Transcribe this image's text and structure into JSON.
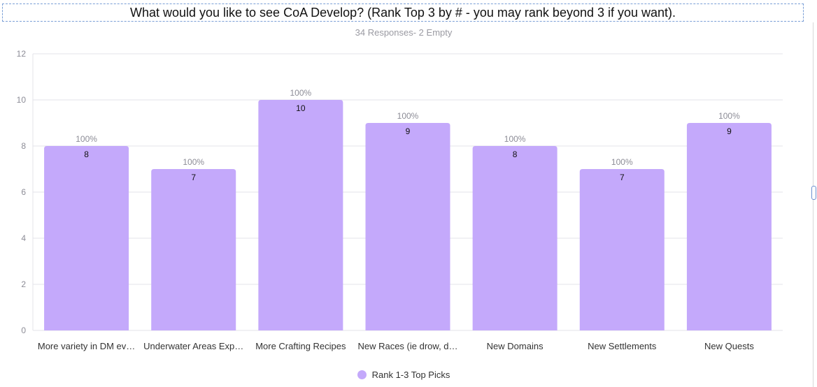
{
  "colors": {
    "bar": "#c4a9fb",
    "grid": "#e3e3e8",
    "axis_text": "#8c8c96",
    "pct_text": "#8c8c96",
    "value_text": "#111111"
  },
  "chart_data": {
    "type": "bar",
    "title": "What would you like to see CoA Develop? (Rank Top 3 by # - you may rank beyond 3 if you want).",
    "subtitle": "34 Responses- 2 Empty",
    "categories": [
      "More variety in DM ev…",
      "Underwater Areas Exp…",
      "More Crafting Recipes",
      "New Races (ie drow, d…",
      "New Domains",
      "New Settlements",
      "New Quests"
    ],
    "series": [
      {
        "name": "Rank 1-3 Top Picks",
        "values": [
          8,
          7,
          10,
          9,
          8,
          7,
          9
        ]
      }
    ],
    "percent_labels": [
      "100%",
      "100%",
      "100%",
      "100%",
      "100%",
      "100%",
      "100%"
    ],
    "ylim": [
      0,
      12
    ],
    "yticks": [
      0,
      2,
      4,
      6,
      8,
      10,
      12
    ],
    "ytick_labels": [
      "0",
      "2",
      "4",
      "6",
      "8",
      "10",
      "12"
    ],
    "xlabel": "",
    "ylabel": "",
    "grid": true,
    "legend_position": "bottom"
  }
}
